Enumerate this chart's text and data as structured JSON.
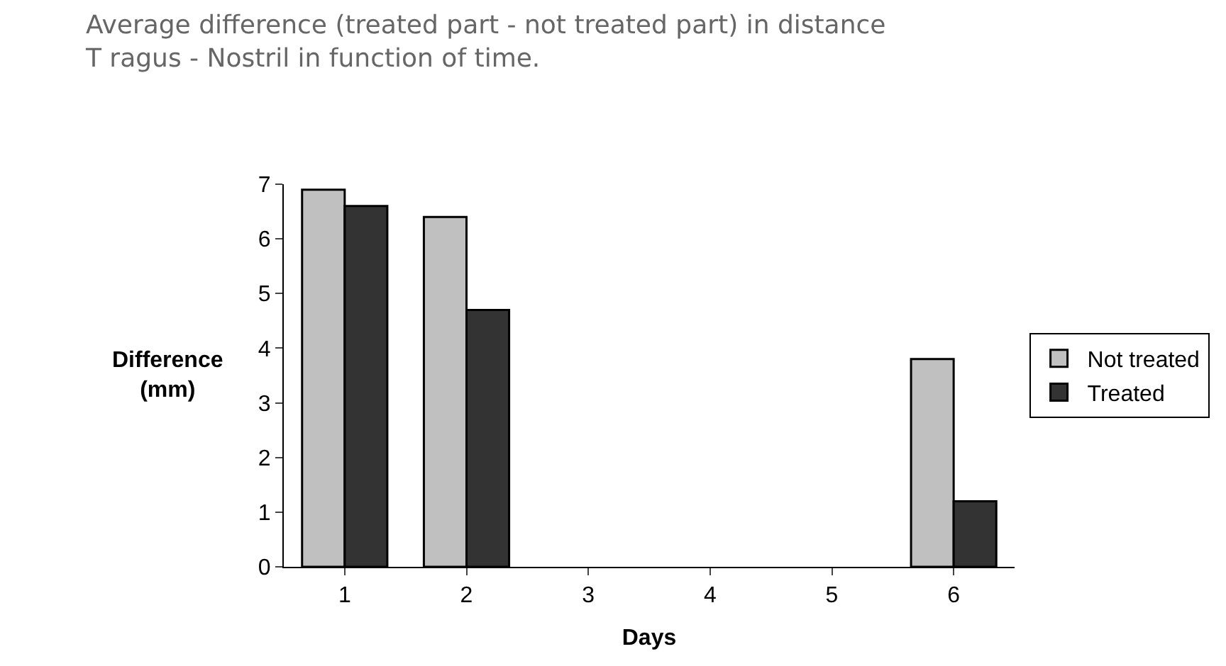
{
  "chart_data": {
    "type": "bar",
    "title": "Average difference (treated part - not treated part) in distance\nT ragus - Nostril in function of time.",
    "xlabel": "Days",
    "ylabel": "Difference\n(mm)",
    "categories": [
      "1",
      "2",
      "3",
      "4",
      "5",
      "6"
    ],
    "series": [
      {
        "name": "Not treated",
        "color": "#c0c0c0",
        "values": [
          6.9,
          6.4,
          null,
          null,
          null,
          3.8
        ]
      },
      {
        "name": "Treated",
        "color": "#333333",
        "values": [
          6.6,
          4.7,
          null,
          null,
          null,
          1.2
        ]
      }
    ],
    "ylim": [
      0,
      7
    ],
    "yticks": [
      0,
      1,
      2,
      3,
      4,
      5,
      6,
      7
    ],
    "legend": "right"
  }
}
